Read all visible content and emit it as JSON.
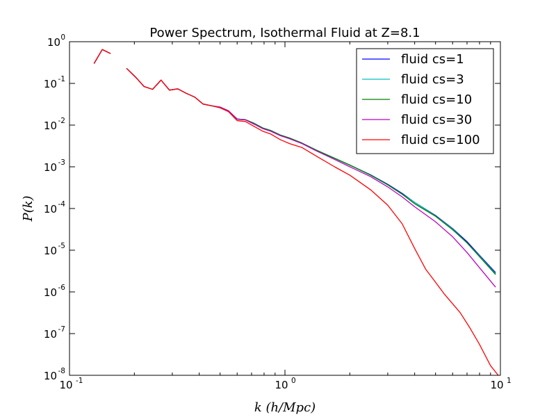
{
  "chart_data": {
    "type": "line",
    "title": "Power Spectrum, Isothermal Fluid at Z=8.1",
    "xlabel": "k (h/Mpc)",
    "ylabel": "P(k)",
    "x_scale": "log",
    "y_scale": "log",
    "xlim": [
      0.1,
      10
    ],
    "ylim": [
      1e-08,
      1
    ],
    "x_ticks": [
      {
        "base": "10",
        "exp": "-1",
        "value": 0.1
      },
      {
        "base": "10",
        "exp": "0",
        "value": 1
      },
      {
        "base": "10",
        "exp": "1",
        "value": 10
      }
    ],
    "y_ticks": [
      {
        "base": "10",
        "exp": "0",
        "value": 1
      },
      {
        "base": "10",
        "exp": "-1",
        "value": 0.1
      },
      {
        "base": "10",
        "exp": "-2",
        "value": 0.01
      },
      {
        "base": "10",
        "exp": "-3",
        "value": 0.001
      },
      {
        "base": "10",
        "exp": "-4",
        "value": 0.0001
      },
      {
        "base": "10",
        "exp": "-5",
        "value": 1e-05
      },
      {
        "base": "10",
        "exp": "-6",
        "value": 1e-06
      },
      {
        "base": "10",
        "exp": "-7",
        "value": 1e-07
      },
      {
        "base": "10",
        "exp": "-8",
        "value": 1e-08
      }
    ],
    "grid": false,
    "legend_position": "top-right",
    "series": [
      {
        "name": "fluid cs=1",
        "color": "#0000ff",
        "points": [
          [
            0.13,
            0.3
          ],
          [
            0.142,
            0.65
          ],
          [
            0.155,
            0.52
          ],
          null,
          [
            0.184,
            0.23
          ],
          [
            0.203,
            0.14
          ],
          [
            0.222,
            0.084
          ],
          [
            0.243,
            0.072
          ],
          [
            0.266,
            0.12
          ],
          [
            0.291,
            0.069
          ],
          [
            0.318,
            0.074
          ],
          [
            0.348,
            0.058
          ],
          [
            0.381,
            0.047
          ],
          [
            0.417,
            0.032
          ],
          [
            0.457,
            0.029
          ],
          [
            0.5,
            0.027
          ],
          [
            0.547,
            0.022
          ],
          [
            0.6,
            0.014
          ],
          [
            0.655,
            0.0135
          ],
          [
            0.72,
            0.011
          ],
          [
            0.79,
            0.0085
          ],
          [
            0.86,
            0.0074
          ],
          [
            0.95,
            0.0058
          ],
          [
            1.05,
            0.0049
          ],
          [
            1.2,
            0.0037
          ],
          [
            1.4,
            0.0025
          ],
          [
            1.7,
            0.0016
          ],
          [
            2.0,
            0.0011
          ],
          [
            2.5,
            0.00064
          ],
          [
            3.0,
            0.00038
          ],
          [
            3.5,
            0.00023
          ],
          [
            4.0,
            0.00014
          ],
          [
            5.0,
            6.8e-05
          ],
          [
            6.0,
            3.3e-05
          ],
          [
            7.0,
            1.6e-05
          ],
          [
            8.0,
            7.5e-06
          ],
          [
            9.5,
            2.9e-06
          ]
        ]
      },
      {
        "name": "fluid cs=3",
        "color": "#00bfbf",
        "points": [
          [
            0.13,
            0.3
          ],
          [
            0.142,
            0.65
          ],
          [
            0.155,
            0.52
          ],
          null,
          [
            0.184,
            0.23
          ],
          [
            0.203,
            0.14
          ],
          [
            0.222,
            0.084
          ],
          [
            0.243,
            0.072
          ],
          [
            0.266,
            0.12
          ],
          [
            0.291,
            0.069
          ],
          [
            0.318,
            0.074
          ],
          [
            0.348,
            0.058
          ],
          [
            0.381,
            0.047
          ],
          [
            0.417,
            0.032
          ],
          [
            0.457,
            0.029
          ],
          [
            0.5,
            0.027
          ],
          [
            0.547,
            0.022
          ],
          [
            0.6,
            0.014
          ],
          [
            0.655,
            0.0135
          ],
          [
            0.72,
            0.011
          ],
          [
            0.79,
            0.0085
          ],
          [
            0.86,
            0.0074
          ],
          [
            0.95,
            0.0058
          ],
          [
            1.05,
            0.0049
          ],
          [
            1.2,
            0.0037
          ],
          [
            1.4,
            0.0025
          ],
          [
            1.7,
            0.0016
          ],
          [
            2.0,
            0.0011
          ],
          [
            2.5,
            0.00063
          ],
          [
            3.0,
            0.00037
          ],
          [
            3.5,
            0.00022
          ],
          [
            4.0,
            0.00014
          ],
          [
            5.0,
            6.6e-05
          ],
          [
            6.0,
            3.2e-05
          ],
          [
            7.0,
            1.5e-05
          ],
          [
            8.0,
            7.2e-06
          ],
          [
            9.5,
            2.7e-06
          ]
        ]
      },
      {
        "name": "fluid cs=10",
        "color": "#008000",
        "points": [
          [
            0.13,
            0.3
          ],
          [
            0.142,
            0.65
          ],
          [
            0.155,
            0.52
          ],
          null,
          [
            0.184,
            0.23
          ],
          [
            0.203,
            0.14
          ],
          [
            0.222,
            0.084
          ],
          [
            0.243,
            0.072
          ],
          [
            0.266,
            0.12
          ],
          [
            0.291,
            0.069
          ],
          [
            0.318,
            0.074
          ],
          [
            0.348,
            0.058
          ],
          [
            0.381,
            0.047
          ],
          [
            0.417,
            0.032
          ],
          [
            0.457,
            0.029
          ],
          [
            0.5,
            0.027
          ],
          [
            0.547,
            0.022
          ],
          [
            0.6,
            0.014
          ],
          [
            0.655,
            0.0135
          ],
          [
            0.72,
            0.011
          ],
          [
            0.79,
            0.0085
          ],
          [
            0.86,
            0.0074
          ],
          [
            0.95,
            0.0058
          ],
          [
            1.05,
            0.0049
          ],
          [
            1.2,
            0.0037
          ],
          [
            1.4,
            0.0025
          ],
          [
            1.7,
            0.0016
          ],
          [
            2.0,
            0.0011
          ],
          [
            2.5,
            0.00063
          ],
          [
            3.0,
            0.00037
          ],
          [
            3.5,
            0.00022
          ],
          [
            4.0,
            0.00013
          ],
          [
            5.0,
            6.5e-05
          ],
          [
            6.0,
            3.1e-05
          ],
          [
            7.0,
            1.5e-05
          ],
          [
            8.0,
            7e-06
          ],
          [
            9.5,
            2.6e-06
          ]
        ]
      },
      {
        "name": "fluid cs=30",
        "color": "#bf00bf",
        "points": [
          [
            0.13,
            0.3
          ],
          [
            0.142,
            0.65
          ],
          [
            0.155,
            0.52
          ],
          null,
          [
            0.184,
            0.23
          ],
          [
            0.203,
            0.14
          ],
          [
            0.222,
            0.084
          ],
          [
            0.243,
            0.072
          ],
          [
            0.266,
            0.12
          ],
          [
            0.291,
            0.069
          ],
          [
            0.318,
            0.074
          ],
          [
            0.348,
            0.058
          ],
          [
            0.381,
            0.047
          ],
          [
            0.417,
            0.032
          ],
          [
            0.457,
            0.029
          ],
          [
            0.5,
            0.027
          ],
          [
            0.547,
            0.022
          ],
          [
            0.6,
            0.0138
          ],
          [
            0.655,
            0.0133
          ],
          [
            0.72,
            0.0105
          ],
          [
            0.79,
            0.0082
          ],
          [
            0.86,
            0.0071
          ],
          [
            0.95,
            0.0056
          ],
          [
            1.05,
            0.0047
          ],
          [
            1.2,
            0.0036
          ],
          [
            1.4,
            0.0024
          ],
          [
            1.7,
            0.0015
          ],
          [
            2.0,
            0.001
          ],
          [
            2.5,
            0.00058
          ],
          [
            3.0,
            0.00033
          ],
          [
            3.5,
            0.00019
          ],
          [
            4.0,
            0.00011
          ],
          [
            5.0,
            4.8e-05
          ],
          [
            6.0,
            2.1e-05
          ],
          [
            7.0,
            8.8e-06
          ],
          [
            8.0,
            3.8e-06
          ],
          [
            9.5,
            1.3e-06
          ]
        ]
      },
      {
        "name": "fluid cs=100",
        "color": "#ff0000",
        "points": [
          [
            0.13,
            0.3
          ],
          [
            0.142,
            0.65
          ],
          [
            0.155,
            0.52
          ],
          null,
          [
            0.184,
            0.23
          ],
          [
            0.203,
            0.14
          ],
          [
            0.222,
            0.084
          ],
          [
            0.243,
            0.072
          ],
          [
            0.266,
            0.12
          ],
          [
            0.291,
            0.069
          ],
          [
            0.318,
            0.074
          ],
          [
            0.348,
            0.058
          ],
          [
            0.381,
            0.047
          ],
          [
            0.417,
            0.032
          ],
          [
            0.457,
            0.029
          ],
          [
            0.5,
            0.026
          ],
          [
            0.547,
            0.021
          ],
          [
            0.6,
            0.0128
          ],
          [
            0.655,
            0.0122
          ],
          [
            0.72,
            0.0093
          ],
          [
            0.79,
            0.0071
          ],
          [
            0.86,
            0.0061
          ],
          [
            0.95,
            0.0045
          ],
          [
            1.05,
            0.0036
          ],
          [
            1.2,
            0.0029
          ],
          [
            1.4,
            0.0018
          ],
          [
            1.7,
            0.001
          ],
          [
            2.0,
            0.00063
          ],
          [
            2.5,
            0.00028
          ],
          [
            3.0,
            0.00012
          ],
          [
            3.5,
            4.3e-05
          ],
          [
            4.0,
            1.1e-05
          ],
          [
            4.5,
            3.5e-06
          ],
          [
            5.0,
            1.7e-06
          ],
          [
            5.5,
            8.8e-07
          ],
          [
            6.5,
            3.2e-07
          ],
          [
            7.2,
            1.4e-07
          ],
          [
            8.0,
            5.5e-08
          ],
          [
            9.0,
            1.7e-08
          ],
          [
            9.8,
            9.8e-09
          ]
        ]
      }
    ]
  }
}
